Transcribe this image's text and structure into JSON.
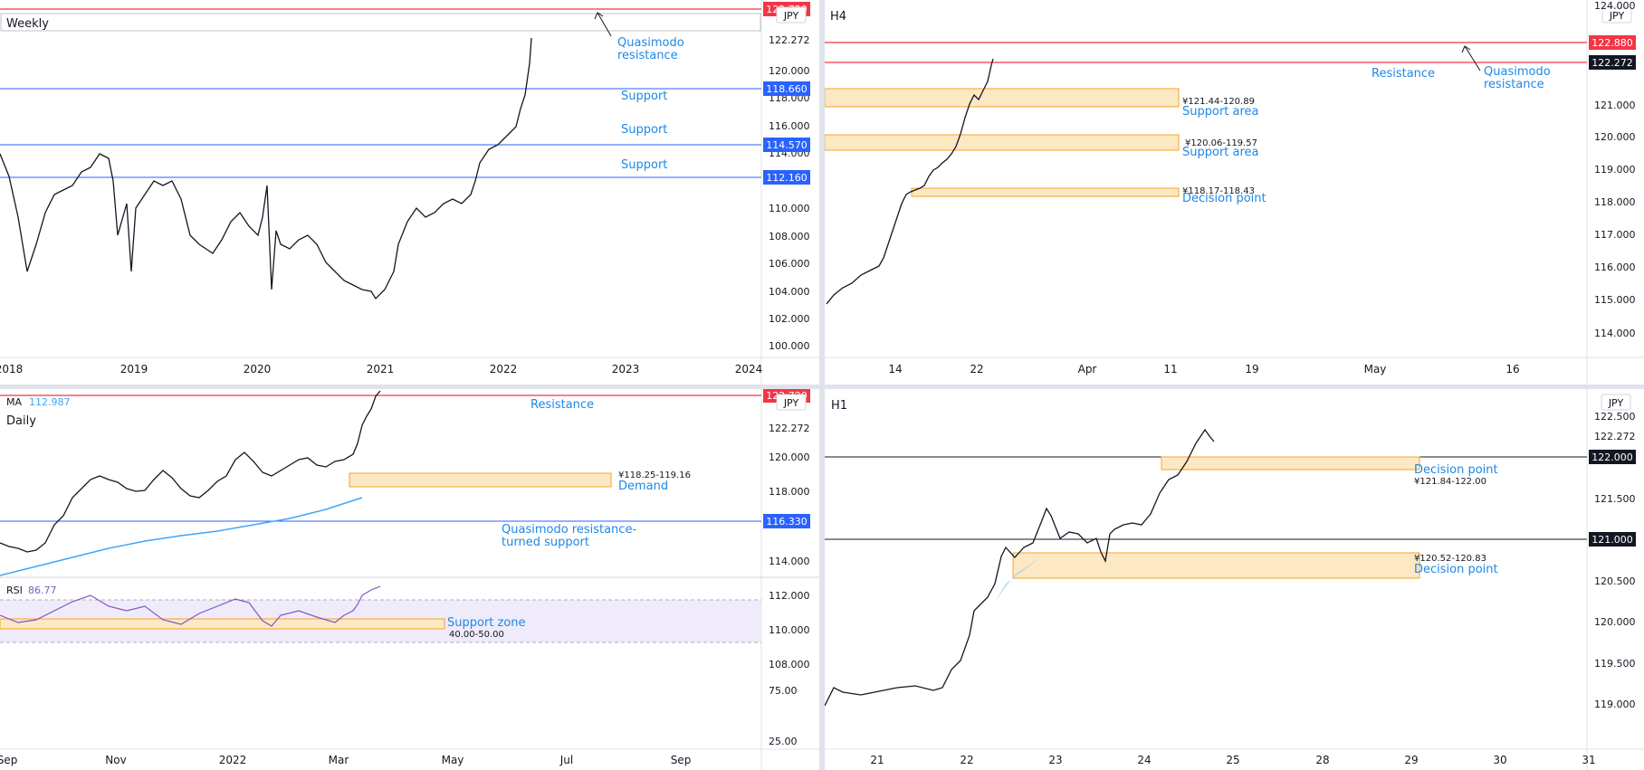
{
  "panels": [
    {
      "id": "weekly",
      "label": "Weekly",
      "currency": "JPY",
      "yticks": [
        "122.272",
        "120.000",
        "118.000",
        "116.000",
        "114.000",
        "112.000",
        "110.000",
        "108.000",
        "106.000",
        "104.000",
        "102.000",
        "100.000"
      ],
      "xticks": [
        "2018",
        "2019",
        "2020",
        "2021",
        "2022",
        "2023",
        "2024"
      ],
      "price_labels": [
        {
          "text": "122.720",
          "kind": "red"
        },
        {
          "text": "122.272",
          "kind": "plain"
        },
        {
          "text": "118.660",
          "kind": "blue"
        },
        {
          "text": "114.570",
          "kind": "blue"
        },
        {
          "text": "112.160",
          "kind": "blue"
        }
      ],
      "annotations": [
        "Quasimodo",
        "resistance",
        "Support",
        "Support",
        "Support"
      ]
    },
    {
      "id": "h4",
      "label": "H4",
      "currency": "JPY",
      "yticks": [
        "124.000",
        "122.272",
        "121.000",
        "120.000",
        "119.000",
        "118.000",
        "117.000",
        "116.000",
        "115.000",
        "114.000"
      ],
      "xticks": [
        "14",
        "22",
        "Apr",
        "11",
        "19",
        "May",
        "16"
      ],
      "price_labels": [
        {
          "text": "122.880",
          "kind": "red"
        },
        {
          "text": "122.272",
          "kind": "dark"
        }
      ],
      "annotations": [
        "Resistance",
        "Quasimodo",
        "resistance",
        "Support area",
        "Support area",
        "Decision point"
      ],
      "zone_ranges": [
        "¥121.44-120.89",
        "¥120.06-119.57",
        "¥118.17-118.43"
      ]
    },
    {
      "id": "daily",
      "label": "Daily",
      "currency": "JPY",
      "ma_label": "MA",
      "ma_value": "112.987",
      "yticks": [
        "122.272",
        "120.000",
        "118.000",
        "114.000",
        "112.000",
        "110.000",
        "108.000"
      ],
      "xticks": [
        "Sep",
        "Nov",
        "2022",
        "Mar",
        "May",
        "Jul",
        "Sep"
      ],
      "price_labels": [
        {
          "text": "122.720",
          "kind": "red"
        },
        {
          "text": "116.330",
          "kind": "blue"
        }
      ],
      "annotations": [
        "Resistance",
        "Demand",
        "Quasimodo resistance-",
        "turned support"
      ],
      "zone_ranges": [
        "¥118.25-119.16"
      ],
      "rsi": {
        "label": "RSI",
        "value": "86.77",
        "levels": [
          "75.00",
          "25.00"
        ],
        "zone_label": "Support zone",
        "zone_range": "40.00-50.00"
      }
    },
    {
      "id": "h1",
      "label": "H1",
      "currency": "JPY",
      "yticks": [
        "122.500",
        "122.272",
        "121.500",
        "120.500",
        "120.000",
        "119.500",
        "119.000"
      ],
      "xticks": [
        "21",
        "22",
        "23",
        "24",
        "25",
        "28",
        "29",
        "30",
        "31"
      ],
      "price_labels": [
        {
          "text": "122.000",
          "kind": "dark"
        },
        {
          "text": "121.000",
          "kind": "dark"
        }
      ],
      "annotations": [
        "Decision point",
        "Decision point"
      ],
      "zone_ranges": [
        "¥121.84-122.00",
        "¥120.52-120.83"
      ]
    }
  ],
  "colors": {
    "resistance": "#f23645",
    "support": "#2962ff",
    "annotation_text": "#1e88e5",
    "zone_fill": "#fde8c4",
    "zone_stroke": "#f5a623",
    "ma_line": "#42a5f5",
    "rsi_line": "#7e57c2",
    "rsi_band": "#f0ebfa",
    "candles": "#131722",
    "axis_text": "#131722"
  },
  "chart_data": [
    {
      "type": "candlestick",
      "title": "Weekly",
      "x": [
        "2018",
        "2019",
        "2020",
        "2021",
        "2022",
        "2023",
        "2024"
      ],
      "ylim": [
        99.5,
        123.2
      ],
      "close_path": [
        [
          "2018",
          113.0
        ],
        [
          "2018-Q2",
          110.0
        ],
        [
          "2018-Q3",
          111.5
        ],
        [
          "2018-Q4",
          113.5
        ],
        [
          "2019",
          109.0
        ],
        [
          "2019-Q2",
          108.0
        ],
        [
          "2019-Q3",
          106.5
        ],
        [
          "2019-Q4",
          109.0
        ],
        [
          "2020",
          108.5
        ],
        [
          "2020-Q2",
          107.5
        ],
        [
          "2020-Q3",
          105.5
        ],
        [
          "2020-Q4",
          104.0
        ],
        [
          "2021",
          104.0
        ],
        [
          "2021-Q2",
          110.0
        ],
        [
          "2021-Q3",
          110.0
        ],
        [
          "2021-Q4",
          113.5
        ],
        [
          "2022",
          115.5
        ],
        [
          "2022-Q1",
          122.3
        ]
      ],
      "horizontal_levels": [
        {
          "price": 122.72,
          "role": "resistance"
        },
        {
          "price": 118.66,
          "role": "support"
        },
        {
          "price": 114.57,
          "role": "support"
        },
        {
          "price": 112.16,
          "role": "support"
        }
      ]
    },
    {
      "type": "candlestick",
      "title": "H4",
      "x": [
        "14",
        "22",
        "Apr",
        "11",
        "19",
        "May",
        "16"
      ],
      "ylim": [
        113.5,
        124.2
      ],
      "close_path": [
        [
          "14",
          114.9
        ],
        [
          "16",
          116.0
        ],
        [
          "18",
          118.0
        ],
        [
          "22",
          119.2
        ],
        [
          "23",
          120.8
        ],
        [
          "24",
          122.3
        ]
      ],
      "horizontal_levels": [
        {
          "price": 122.88,
          "role": "resistance"
        },
        {
          "price": 122.272,
          "role": "resistance"
        }
      ],
      "zones": [
        {
          "from": 121.44,
          "to": 120.89,
          "label": "Support area"
        },
        {
          "from": 120.06,
          "to": 119.57,
          "label": "Support area"
        },
        {
          "from": 118.17,
          "to": 118.43,
          "label": "Decision point"
        }
      ]
    },
    {
      "type": "candlestick",
      "title": "Daily",
      "x": [
        "Sep",
        "Nov",
        "2022",
        "Mar",
        "May",
        "Jul",
        "Sep"
      ],
      "ylim": [
        107.8,
        123.0
      ],
      "close_path": [
        [
          "Sep",
          110.0
        ],
        [
          "Oct",
          113.5
        ],
        [
          "Nov",
          114.5
        ],
        [
          "Dec",
          113.5
        ],
        [
          "2022",
          115.5
        ],
        [
          "Feb",
          115.0
        ],
        [
          "Mar",
          116.0
        ],
        [
          "Mar-mid",
          119.0
        ],
        [
          "Mar-late",
          122.3
        ]
      ],
      "ma": {
        "name": "MA",
        "value": 112.987,
        "path": [
          [
            "Sep",
            108.0
          ],
          [
            "Nov",
            109.5
          ],
          [
            "2022",
            111.0
          ],
          [
            "Mar",
            112.987
          ]
        ]
      },
      "horizontal_levels": [
        {
          "price": 122.72,
          "role": "resistance"
        },
        {
          "price": 116.33,
          "role": "support"
        }
      ],
      "zones": [
        {
          "from": 118.25,
          "to": 119.16,
          "label": "Demand"
        }
      ],
      "rsi": {
        "value": 86.77,
        "levels": [
          75,
          25
        ],
        "zone": [
          40,
          50
        ]
      }
    },
    {
      "type": "candlestick",
      "title": "H1",
      "x": [
        "21",
        "22",
        "23",
        "24",
        "25",
        "28",
        "29",
        "30",
        "31"
      ],
      "ylim": [
        118.75,
        122.85
      ],
      "close_path": [
        [
          "21",
          119.2
        ],
        [
          "22",
          119.4
        ],
        [
          "22.5",
          120.7
        ],
        [
          "23",
          121.1
        ],
        [
          "23.5",
          120.7
        ],
        [
          "24",
          121.0
        ],
        [
          "24.5",
          122.0
        ],
        [
          "24.7",
          122.35
        ],
        [
          "24.8",
          122.27
        ]
      ],
      "horizontal_levels": [
        {
          "price": 122.0,
          "role": "level"
        },
        {
          "price": 121.0,
          "role": "level"
        }
      ],
      "zones": [
        {
          "from": 121.84,
          "to": 122.0,
          "label": "Decision point"
        },
        {
          "from": 120.52,
          "to": 120.83,
          "label": "Decision point"
        }
      ]
    }
  ]
}
